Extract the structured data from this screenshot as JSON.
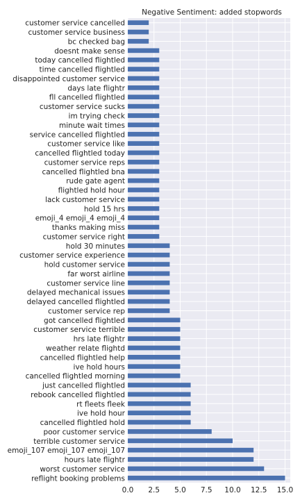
{
  "chart_data": {
    "type": "bar",
    "orientation": "horizontal",
    "title": "Negative Sentiment: added stopwords",
    "xlabel": "",
    "ylabel": "",
    "xlim": [
      0,
      15.5
    ],
    "xticks": [
      0.0,
      2.5,
      5.0,
      7.5,
      10.0,
      12.5,
      15.0
    ],
    "xtick_labels": [
      "0.0",
      "2.5",
      "5.0",
      "7.5",
      "10.0",
      "12.5",
      "15.0"
    ],
    "grid": true,
    "background": "#EAEAF2",
    "bar_color": "#4C72B0",
    "categories": [
      "customer service cancelled",
      "customer service business",
      "bc checked bag",
      "doesnt make sense",
      "today cancelled flightled",
      "time cancelled flightled",
      "disappointed customer service",
      "days late flightr",
      "fll cancelled flightled",
      "customer service sucks",
      "im trying check",
      "minute wait times",
      "service cancelled flightled",
      "customer service like",
      "cancelled flightled today",
      "customer service reps",
      "cancelled flightled bna",
      "rude gate agent",
      "flightled hold hour",
      "lack customer service",
      "hold 15 hrs",
      "emoji_4 emoji_4 emoji_4",
      "thanks making miss",
      "customer service right",
      "hold 30 minutes",
      "customer service experience",
      "hold customer service",
      "far worst airline",
      "customer service line",
      "delayed mechanical issues",
      "delayed cancelled flightled",
      "customer service rep",
      "got cancelled flightled",
      "customer service terrible",
      "hrs late flightr",
      "weather relate flightd",
      "cancelled flightled help",
      "ive hold hours",
      "cancelled flightled morning",
      "just cancelled flightled",
      "rebook cancelled flightled",
      "rt fleets fleek",
      "ive hold hour",
      "cancelled flightled hold",
      "poor customer service",
      "terrible customer service",
      "emoji_107 emoji_107 emoji_107",
      "hours late flightr",
      "worst customer service",
      "reflight booking problems"
    ],
    "values": [
      2,
      2,
      2,
      3,
      3,
      3,
      3,
      3,
      3,
      3,
      3,
      3,
      3,
      3,
      3,
      3,
      3,
      3,
      3,
      3,
      3,
      3,
      3,
      3,
      4,
      4,
      4,
      4,
      4,
      4,
      4,
      4,
      5,
      5,
      5,
      5,
      5,
      5,
      5,
      6,
      6,
      6,
      6,
      6,
      8,
      10,
      12,
      12,
      13,
      15
    ]
  }
}
